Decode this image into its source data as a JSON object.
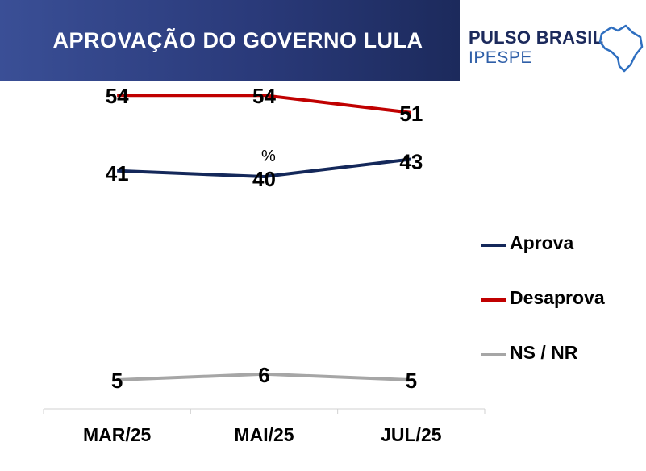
{
  "header": {
    "title": "APROVAÇÃO DO GOVERNO LULA"
  },
  "logo": {
    "line1": "PULSO BRASIL",
    "line2": "IPESPE",
    "icon": "brazil-map-icon"
  },
  "chart_data": {
    "type": "line",
    "unit_label": "%",
    "categories": [
      "MAR/25",
      "MAI/25",
      "JUL/25"
    ],
    "ylim": [
      0,
      60
    ],
    "grid": false,
    "legend_position": "right",
    "series": [
      {
        "name": "Aprova",
        "values": [
          41,
          40,
          43
        ],
        "color": "#14285a"
      },
      {
        "name": "Desaprova",
        "values": [
          54,
          54,
          51
        ],
        "color": "#c00000"
      },
      {
        "name": "NS / NR",
        "values": [
          5,
          6,
          5
        ],
        "color": "#a6a6a6"
      }
    ]
  }
}
